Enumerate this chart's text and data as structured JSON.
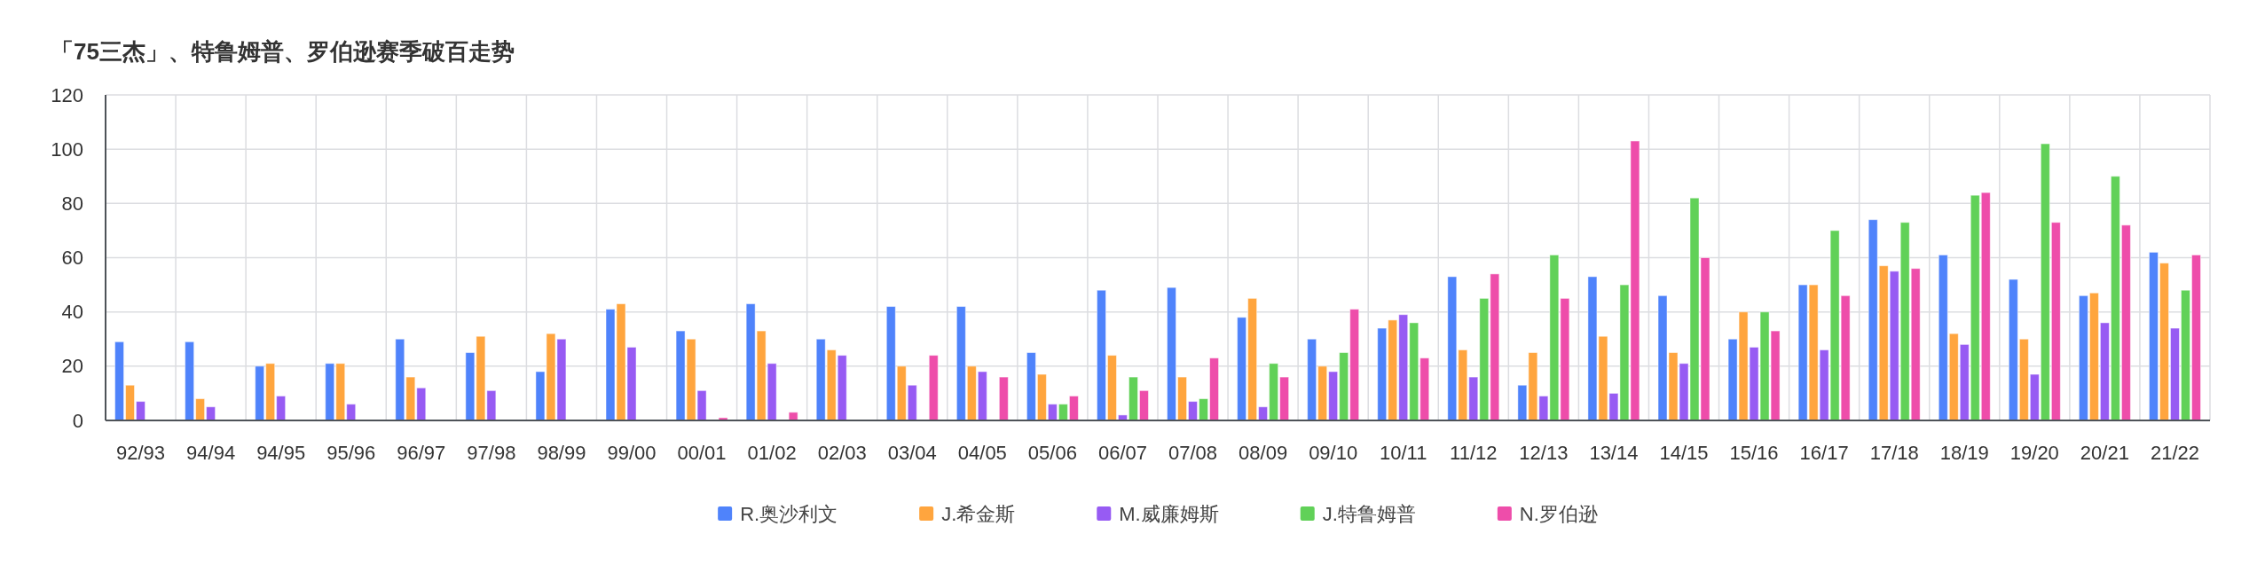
{
  "chart_data": {
    "type": "bar",
    "title": "「75三杰」、特鲁姆普、罗伯逊赛季破百走势",
    "categories": [
      "92/93",
      "94/94",
      "94/95",
      "95/96",
      "96/97",
      "97/98",
      "98/99",
      "99/00",
      "00/01",
      "01/02",
      "02/03",
      "03/04",
      "04/05",
      "05/06",
      "06/07",
      "07/08",
      "08/09",
      "09/10",
      "10/11",
      "11/12",
      "12/13",
      "13/14",
      "14/15",
      "15/16",
      "16/17",
      "17/18",
      "18/19",
      "19/20",
      "20/21",
      "21/22"
    ],
    "series": [
      {
        "name": "R.奥沙利文",
        "color": "#4f83fb",
        "values": [
          29,
          29,
          20,
          21,
          30,
          25,
          18,
          41,
          33,
          43,
          30,
          42,
          42,
          25,
          48,
          49,
          38,
          30,
          34,
          53,
          13,
          53,
          46,
          30,
          50,
          74,
          61,
          52,
          46,
          62
        ]
      },
      {
        "name": "J.希金斯",
        "color": "#ffa53e",
        "values": [
          13,
          8,
          21,
          21,
          16,
          31,
          32,
          43,
          30,
          33,
          26,
          20,
          20,
          17,
          24,
          16,
          45,
          20,
          37,
          26,
          25,
          31,
          25,
          40,
          50,
          57,
          32,
          30,
          47,
          58
        ]
      },
      {
        "name": "M.威廉姆斯",
        "color": "#975bf3",
        "values": [
          7,
          5,
          9,
          6,
          12,
          11,
          30,
          27,
          11,
          21,
          24,
          13,
          18,
          6,
          2,
          7,
          5,
          18,
          39,
          16,
          9,
          10,
          21,
          27,
          26,
          55,
          28,
          17,
          36,
          34
        ]
      },
      {
        "name": "J.特鲁姆普",
        "color": "#61d158",
        "values": [
          null,
          null,
          null,
          null,
          null,
          null,
          null,
          null,
          null,
          null,
          null,
          null,
          null,
          6,
          16,
          8,
          21,
          25,
          36,
          45,
          61,
          50,
          82,
          40,
          70,
          73,
          83,
          102,
          90,
          48
        ]
      },
      {
        "name": "N.罗伯逊",
        "color": "#ee4daa",
        "values": [
          null,
          null,
          null,
          null,
          null,
          null,
          null,
          null,
          1,
          3,
          null,
          24,
          16,
          9,
          11,
          23,
          16,
          41,
          23,
          54,
          45,
          103,
          60,
          33,
          46,
          56,
          84,
          73,
          72,
          61
        ]
      }
    ],
    "ylim": [
      0,
      120
    ],
    "yticks": [
      0,
      20,
      40,
      60,
      80,
      100,
      120
    ],
    "grid": true,
    "legend": "bottom"
  }
}
